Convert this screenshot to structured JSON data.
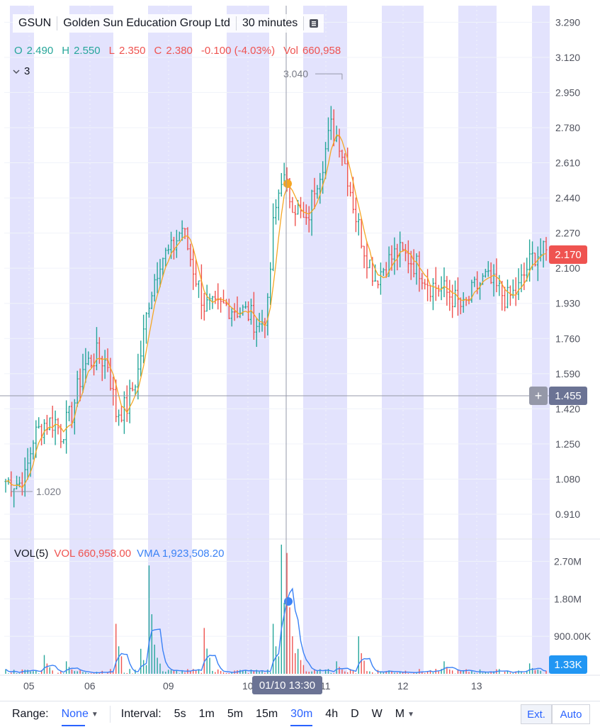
{
  "header": {
    "symbol": "GSUN",
    "name": "Golden Sun Education Group Ltd",
    "interval": "30 minutes"
  },
  "ohlc": {
    "o_label": "O",
    "o": "2.490",
    "h_label": "H",
    "h": "2.550",
    "l_label": "L",
    "l": "2.350",
    "c_label": "C",
    "c": "2.380",
    "change": "-0.100 (-4.03%)",
    "vol_label": "Vol",
    "vol": "660,958"
  },
  "collapse_count": "3",
  "volume_legend": {
    "name": "VOL(5)",
    "vol": "VOL 660,958.00",
    "vma": "VMA 1,923,508.20"
  },
  "badges": {
    "last_price": "2.170",
    "crosshair_price": "1.455",
    "crosshair_volume": "1.33K",
    "crosshair_time": "01/10 13:30"
  },
  "bottom_bar": {
    "range_label": "Range:",
    "range_value": "None",
    "interval_label": "Interval:",
    "intervals": [
      "5s",
      "1m",
      "5m",
      "15m",
      "30m",
      "4h",
      "D",
      "W",
      "M"
    ],
    "active_interval": "30m",
    "ext": "Ext.",
    "auto": "Auto"
  },
  "colors": {
    "up": "#26a69a",
    "down": "#ef5350",
    "ma": "#f5a623",
    "vma": "#3b82f6",
    "session_band": "#dcdcfc",
    "badge_dark": "#6b7394",
    "badge_blue": "#2196f3"
  },
  "chart_data": {
    "type": "candlestick",
    "price_axis": {
      "ticks": [
        "3.290",
        "3.120",
        "2.950",
        "2.780",
        "2.610",
        "2.440",
        "2.270",
        "2.100",
        "1.930",
        "1.760",
        "1.590",
        "1.420",
        "1.250",
        "1.080",
        "0.910"
      ],
      "range": [
        0.79,
        3.37
      ]
    },
    "volume_axis": {
      "ticks": [
        "2.70M",
        "1.80M",
        "900.00K"
      ],
      "range": [
        0,
        3200000
      ]
    },
    "x_axis_ticks": [
      "05",
      "06",
      "09",
      "10",
      "11",
      "12",
      "13"
    ],
    "annotations": {
      "high_marker": "3.040",
      "low_marker": "1.020"
    },
    "anchors": [
      {
        "i": 0,
        "close": 1.07
      },
      {
        "i": 5,
        "close": 1.06
      },
      {
        "i": 7,
        "close": 1.08
      },
      {
        "i": 10,
        "close": 1.28
      },
      {
        "i": 14,
        "close": 1.35
      },
      {
        "i": 18,
        "close": 1.36
      },
      {
        "i": 20,
        "close": 1.3
      },
      {
        "i": 24,
        "close": 1.4
      },
      {
        "i": 28,
        "close": 1.62
      },
      {
        "i": 33,
        "close": 1.68
      },
      {
        "i": 37,
        "close": 1.64
      },
      {
        "i": 40,
        "close": 1.4
      },
      {
        "i": 44,
        "close": 1.43
      },
      {
        "i": 48,
        "close": 1.6
      },
      {
        "i": 52,
        "close": 1.95
      },
      {
        "i": 56,
        "close": 2.15
      },
      {
        "i": 60,
        "close": 2.18
      },
      {
        "i": 64,
        "close": 2.3
      },
      {
        "i": 68,
        "close": 2.1
      },
      {
        "i": 72,
        "close": 1.92
      },
      {
        "i": 76,
        "close": 1.9
      },
      {
        "i": 80,
        "close": 1.92
      },
      {
        "i": 84,
        "close": 1.9
      },
      {
        "i": 88,
        "close": 1.88
      },
      {
        "i": 92,
        "close": 1.82
      },
      {
        "i": 95,
        "close": 1.9
      },
      {
        "i": 97,
        "close": 2.3
      },
      {
        "i": 100,
        "close": 2.55
      },
      {
        "i": 103,
        "close": 2.45
      },
      {
        "i": 106,
        "close": 2.38
      },
      {
        "i": 109,
        "close": 2.3
      },
      {
        "i": 112,
        "close": 2.5
      },
      {
        "i": 115,
        "close": 2.62
      },
      {
        "i": 118,
        "close": 2.78
      },
      {
        "i": 121,
        "close": 2.72
      },
      {
        "i": 124,
        "close": 2.55
      },
      {
        "i": 127,
        "close": 2.35
      },
      {
        "i": 130,
        "close": 2.2
      },
      {
        "i": 134,
        "close": 2.05
      },
      {
        "i": 138,
        "close": 2.12
      },
      {
        "i": 142,
        "close": 2.18
      },
      {
        "i": 146,
        "close": 2.15
      },
      {
        "i": 150,
        "close": 2.1
      },
      {
        "i": 154,
        "close": 2.02
      },
      {
        "i": 158,
        "close": 2.0
      },
      {
        "i": 162,
        "close": 1.96
      },
      {
        "i": 166,
        "close": 1.9
      },
      {
        "i": 170,
        "close": 2.0
      },
      {
        "i": 174,
        "close": 2.05
      },
      {
        "i": 178,
        "close": 2.0
      },
      {
        "i": 182,
        "close": 1.95
      },
      {
        "i": 186,
        "close": 2.0
      },
      {
        "i": 189,
        "close": 2.1
      },
      {
        "i": 192,
        "close": 2.17
      },
      {
        "i": 196,
        "close": 2.17
      }
    ],
    "candle_count": 197,
    "volume_spikes": [
      {
        "i": 14,
        "v": 450000
      },
      {
        "i": 22,
        "v": 300000
      },
      {
        "i": 40,
        "v": 1200000
      },
      {
        "i": 49,
        "v": 600000
      },
      {
        "i": 52,
        "v": 2600000
      },
      {
        "i": 54,
        "v": 700000
      },
      {
        "i": 72,
        "v": 1100000
      },
      {
        "i": 97,
        "v": 1200000
      },
      {
        "i": 100,
        "v": 3100000
      },
      {
        "i": 102,
        "v": 2900000
      },
      {
        "i": 104,
        "v": 900000
      },
      {
        "i": 106,
        "v": 600000
      },
      {
        "i": 120,
        "v": 300000
      },
      {
        "i": 128,
        "v": 900000
      },
      {
        "i": 159,
        "v": 300000
      },
      {
        "i": 190,
        "v": 250000
      }
    ]
  }
}
